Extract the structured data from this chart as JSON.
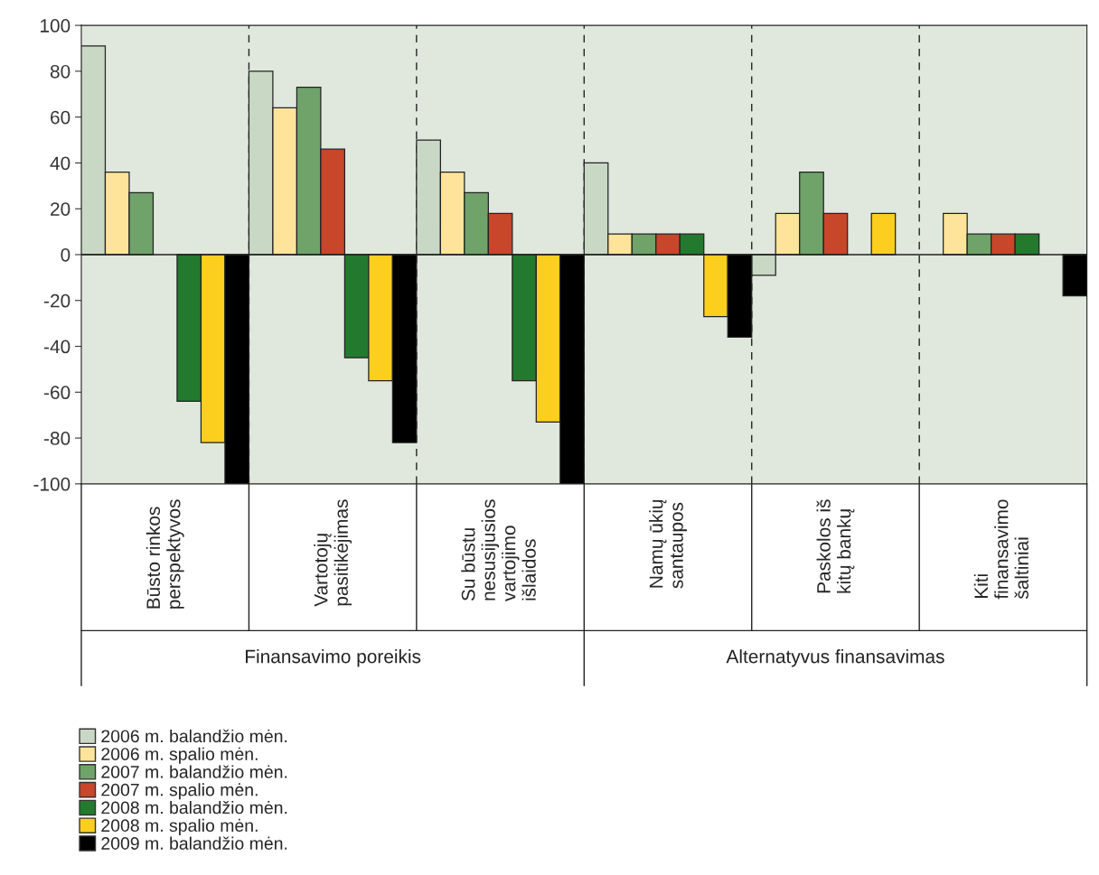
{
  "chart_data": {
    "type": "bar",
    "categories": [
      "Būsto rinkos\nperspektyvos",
      "Vartotojų\npasitikėjimas",
      "Su būstu\nnesusijusios\nvartojimo\nišlaidos",
      "Namų ūkių\nsantaupos",
      "Paskolos iš\nkitų bankų",
      "Kiti\nfinansavimo\nšaltiniai"
    ],
    "series": [
      {
        "name": "2006 m. balandžio mėn.",
        "color": "#c8d8c4",
        "values": [
          91,
          80,
          50,
          40,
          -9,
          null
        ]
      },
      {
        "name": "2006 m. spalio mėn.",
        "color": "#fde49a",
        "values": [
          36,
          64,
          36,
          9,
          18,
          18
        ]
      },
      {
        "name": "2007 m. balandžio mėn.",
        "color": "#6fa36a",
        "values": [
          27,
          73,
          27,
          9,
          36,
          9
        ]
      },
      {
        "name": "2007 m. spalio mėn.",
        "color": "#c8462a",
        "values": [
          null,
          46,
          18,
          9,
          18,
          9
        ]
      },
      {
        "name": "2008 m. balandžio mėn.",
        "color": "#237a2e",
        "values": [
          -64,
          -45,
          -55,
          9,
          null,
          9
        ]
      },
      {
        "name": "2008 m. spalio mėn.",
        "color": "#fccf1e",
        "values": [
          -82,
          -55,
          -73,
          -27,
          18,
          null
        ]
      },
      {
        "name": "2009 m. balandžio mėn.",
        "color": "#000000",
        "values": [
          -100,
          -82,
          -100,
          -36,
          null,
          -18
        ]
      }
    ],
    "ylim": [
      -100,
      100
    ],
    "yticks": [
      -100,
      -80,
      -60,
      -40,
      -20,
      0,
      20,
      40,
      60,
      80,
      100
    ],
    "annotations": [
      "Finansavimo poreikis",
      "Alternatyvus finansavimas"
    ],
    "grid": "x",
    "legend": "bottom left"
  }
}
